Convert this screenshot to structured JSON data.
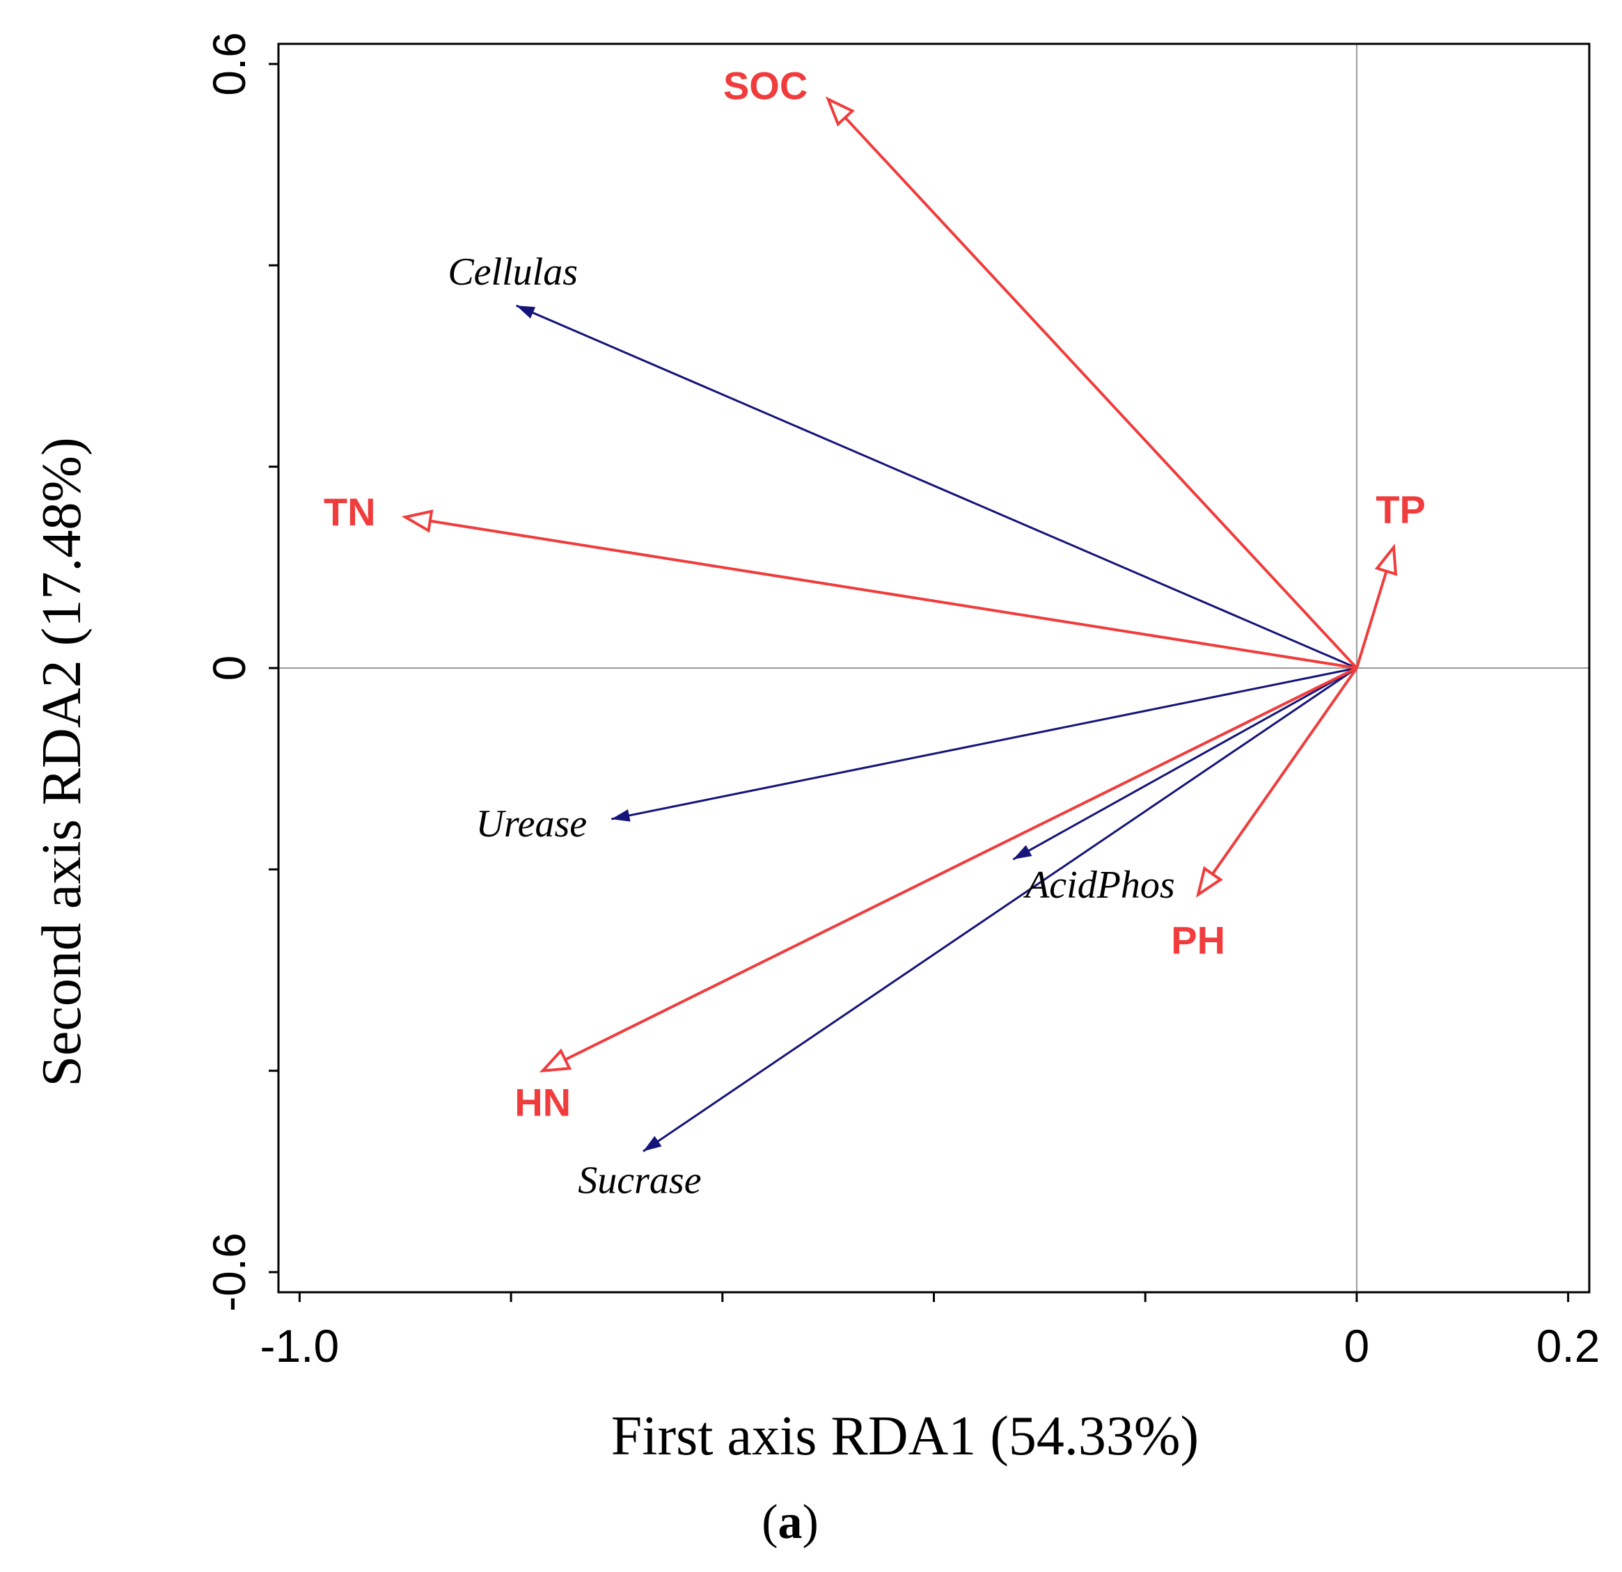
{
  "chart_data": {
    "type": "rda-biplot",
    "xlabel": "First axis RDA1 (54.33%)",
    "ylabel": "Second axis RDA2 (17.48%)",
    "panel_label": "(a)",
    "panel_letter": "a",
    "xlim": [
      -1.02,
      0.22
    ],
    "ylim": [
      -0.62,
      0.62
    ],
    "xticks": [
      -1.0,
      -0.8,
      -0.6,
      -0.4,
      -0.2,
      0,
      0.2
    ],
    "xtick_labels": [
      "-1.0",
      "",
      "",
      "",
      "",
      "0",
      "0.2"
    ],
    "yticks": [
      -0.6,
      -0.4,
      -0.2,
      0,
      0.2,
      0.4,
      0.6
    ],
    "ytick_labels": [
      "-0.6",
      "",
      "",
      "0",
      "",
      "",
      "0.6"
    ],
    "colors": {
      "environment": "#f03c3c",
      "response": "#14147a",
      "reference": "#999999",
      "frame": "#000000"
    },
    "environment_vectors": [
      {
        "name": "SOC",
        "x": -0.5,
        "y": 0.565
      },
      {
        "name": "TN",
        "x": -0.9,
        "y": 0.15
      },
      {
        "name": "TP",
        "x": 0.035,
        "y": 0.12
      },
      {
        "name": "PH",
        "x": -0.15,
        "y": -0.225
      },
      {
        "name": "HN",
        "x": -0.77,
        "y": -0.4
      }
    ],
    "response_vectors": [
      {
        "name": "Cellulas",
        "x": -0.795,
        "y": 0.36
      },
      {
        "name": "Urease",
        "x": -0.705,
        "y": -0.15
      },
      {
        "name": "AcidPhos",
        "x": -0.325,
        "y": -0.19
      },
      {
        "name": "Sucrase",
        "x": -0.675,
        "y": -0.48
      }
    ]
  }
}
